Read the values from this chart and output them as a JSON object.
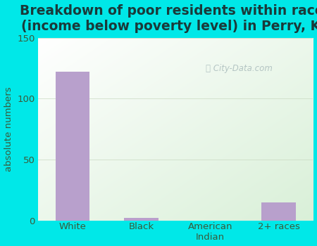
{
  "categories": [
    "White",
    "Black",
    "American\nIndian",
    "2+ races"
  ],
  "values": [
    122,
    2,
    0,
    15
  ],
  "bar_color": "#b8a0cc",
  "title": "Breakdown of poor residents within races\n(income below poverty level) in Perry, KS",
  "ylabel": "absolute numbers",
  "ylim": [
    0,
    150
  ],
  "yticks": [
    0,
    50,
    100,
    150
  ],
  "background_color": "#00e8e8",
  "plot_bg_color_topleft": "#e8f5e0",
  "plot_bg_color_topright": "#f5f8f2",
  "plot_bg_color_bottomleft": "#d8efd0",
  "plot_bg_color_bottomright": "#ffffff",
  "title_color": "#1a3a3a",
  "axis_color": "#3a5a3a",
  "grid_color": "#c8d8c0",
  "title_fontsize": 13.5,
  "label_fontsize": 9.5,
  "ylabel_fontsize": 9.5
}
